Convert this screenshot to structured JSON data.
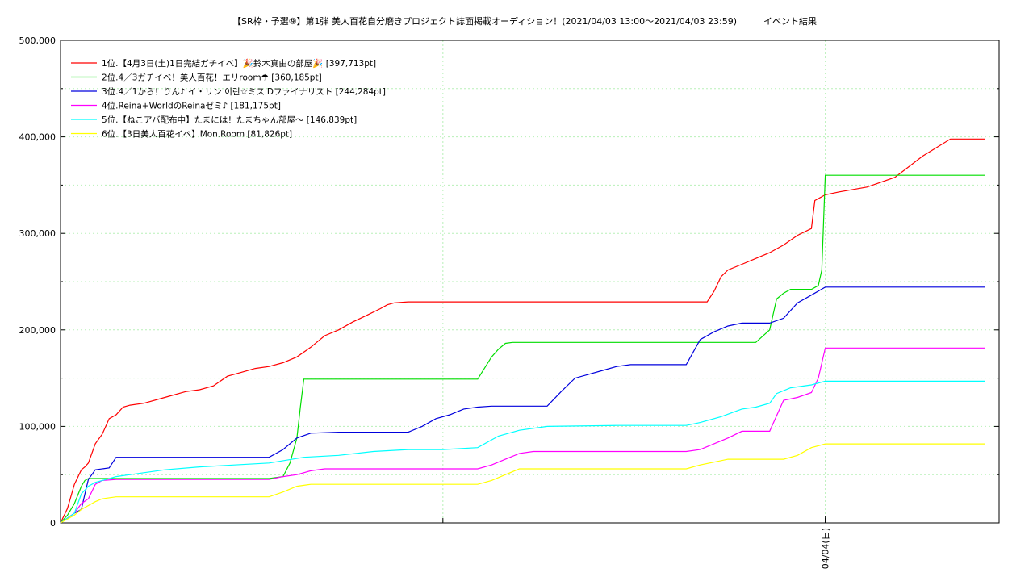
{
  "chart_data": {
    "type": "line",
    "title": "【SR枠・予選⑨】第1弾 美人百花自分磨きプロジェクト誌面掲載オーディション！(2021/04/03 13:00～2021/04/03 23:59)　　　イベント結果",
    "xlabel": "",
    "ylabel": "",
    "x_tick_labels": [
      "04/04(日)"
    ],
    "x_tick_values": [
      11.0
    ],
    "xlim": [
      0,
      13.5
    ],
    "ylim": [
      0,
      500000
    ],
    "y_ticks": [
      0,
      100000,
      200000,
      300000,
      400000,
      500000
    ],
    "y_tick_labels": [
      "0",
      "100,000",
      "200,000",
      "300,000",
      "400,000",
      "500,000"
    ],
    "grid": true,
    "legend_position": "top-left",
    "series": [
      {
        "name": "1位.【4月3日(土)1日完結ガチイベ】🎉鈴木真由の部屋🎉 [397,713pt]",
        "color": "#ff0000",
        "x": [
          0,
          0.1,
          0.2,
          0.3,
          0.35,
          0.4,
          0.5,
          0.6,
          0.7,
          0.8,
          0.9,
          1.0,
          1.2,
          1.5,
          1.8,
          2.0,
          2.2,
          2.4,
          2.6,
          2.8,
          3.0,
          3.2,
          3.4,
          3.6,
          3.7,
          3.8,
          4.0,
          4.2,
          4.4,
          4.6,
          4.7,
          4.8,
          5.0,
          5.3,
          5.6,
          6.0,
          7.0,
          8.0,
          9.0,
          9.3,
          9.4,
          9.5,
          9.6,
          9.8,
          10.0,
          10.2,
          10.4,
          10.6,
          10.8,
          10.85,
          10.9,
          11.0,
          11.2,
          11.6,
          12.0,
          12.4,
          12.8,
          13.3
        ],
        "values": [
          0,
          15000,
          40000,
          55000,
          58000,
          62000,
          82000,
          92000,
          108000,
          112000,
          120000,
          122000,
          124000,
          130000,
          136000,
          138000,
          142000,
          152000,
          156000,
          160000,
          162000,
          166000,
          172000,
          182000,
          188000,
          194000,
          200000,
          208000,
          215000,
          222000,
          226000,
          228000,
          229000,
          229000,
          229000,
          229000,
          229000,
          229000,
          229000,
          229000,
          240000,
          255000,
          262000,
          268000,
          274000,
          280000,
          288000,
          298000,
          305000,
          334000,
          336000,
          340000,
          343000,
          348000,
          358000,
          380000,
          397713,
          397713
        ]
      },
      {
        "name": "2位.4／3ガチイベ！美人百花！エリroom☂ [360,185pt]",
        "color": "#00dd00",
        "x": [
          0,
          0.1,
          0.2,
          0.3,
          0.35,
          0.4,
          0.5,
          1.0,
          2.0,
          3.0,
          3.2,
          3.3,
          3.4,
          3.45,
          3.5,
          4.0,
          5.0,
          6.0,
          6.2,
          6.3,
          6.4,
          6.5,
          7.0,
          8.0,
          9.0,
          10.0,
          10.2,
          10.3,
          10.4,
          10.5,
          10.6,
          10.8,
          10.9,
          10.95,
          11.0,
          13.3
        ],
        "values": [
          0,
          8000,
          20000,
          38000,
          44000,
          46000,
          46000,
          46000,
          46000,
          46000,
          48000,
          62000,
          88000,
          120000,
          149000,
          149000,
          149000,
          149000,
          172000,
          180000,
          186000,
          187000,
          187000,
          187000,
          187000,
          187000,
          200000,
          232000,
          238000,
          242000,
          242000,
          242000,
          246000,
          262000,
          360185,
          360185
        ]
      },
      {
        "name": "3位.4／1から！りん♪ イ・リン 이린☆ミスiDファイナリスト [244,284pt]",
        "color": "#0000dd",
        "x": [
          0,
          0.1,
          0.2,
          0.3,
          0.35,
          0.4,
          0.5,
          0.7,
          0.8,
          1.0,
          2.0,
          3.0,
          3.2,
          3.4,
          3.6,
          4.0,
          5.0,
          5.2,
          5.4,
          5.6,
          5.8,
          6.0,
          6.2,
          6.5,
          7.0,
          7.2,
          7.4,
          7.6,
          7.8,
          8.0,
          8.2,
          8.4,
          8.6,
          9.0,
          9.2,
          9.4,
          9.6,
          9.8,
          10.0,
          10.2,
          10.4,
          10.6,
          10.8,
          11.0,
          13.3
        ],
        "values": [
          0,
          5000,
          10000,
          14000,
          30000,
          45000,
          55000,
          57000,
          68000,
          68000,
          68000,
          68000,
          76000,
          88000,
          93000,
          94000,
          94000,
          100000,
          108000,
          112000,
          118000,
          120000,
          121000,
          121000,
          121000,
          136000,
          150000,
          154000,
          158000,
          162000,
          164000,
          164000,
          164000,
          164000,
          190000,
          198000,
          204000,
          207000,
          207000,
          207000,
          212000,
          228000,
          236000,
          244284,
          244284
        ]
      },
      {
        "name": "4位.Reina+WorldのReinaゼミ♪ [181,175pt]",
        "color": "#ff00ff",
        "x": [
          0,
          0.2,
          0.3,
          0.4,
          0.5,
          0.6,
          0.8,
          1.0,
          2.0,
          3.0,
          3.2,
          3.4,
          3.6,
          3.8,
          4.0,
          5.0,
          5.5,
          6.0,
          6.2,
          6.4,
          6.6,
          6.8,
          7.0,
          8.0,
          9.0,
          9.2,
          9.4,
          9.6,
          9.8,
          10.0,
          10.2,
          10.4,
          10.6,
          10.8,
          10.9,
          11.0,
          13.3
        ],
        "values": [
          0,
          10000,
          20000,
          25000,
          40000,
          44000,
          45000,
          45000,
          45000,
          45000,
          48000,
          50000,
          54000,
          56000,
          56000,
          56000,
          56000,
          56000,
          60000,
          66000,
          72000,
          74000,
          74000,
          74000,
          74000,
          76000,
          82000,
          88000,
          95000,
          95000,
          95000,
          127000,
          130000,
          135000,
          150000,
          181175,
          181175
        ]
      },
      {
        "name": "5位.【ねこアバ配布中】たまには！たまちゃん部屋〜 [146,839pt]",
        "color": "#00ffff",
        "x": [
          0,
          0.2,
          0.3,
          0.4,
          0.5,
          0.6,
          0.8,
          1.0,
          1.5,
          2.0,
          2.5,
          3.0,
          3.5,
          4.0,
          4.5,
          5.0,
          5.5,
          6.0,
          6.3,
          6.6,
          7.0,
          8.0,
          9.0,
          9.2,
          9.5,
          9.8,
          10.0,
          10.2,
          10.3,
          10.5,
          10.8,
          11.0,
          13.3
        ],
        "values": [
          0,
          10000,
          30000,
          38000,
          42000,
          44000,
          48000,
          50000,
          55000,
          58000,
          60000,
          62000,
          68000,
          70000,
          74000,
          76000,
          76000,
          78000,
          90000,
          96000,
          100000,
          101000,
          101000,
          104000,
          110000,
          118000,
          120000,
          124000,
          134000,
          140000,
          143000,
          146839,
          146839
        ]
      },
      {
        "name": "6位.【3日美人百花イベ】Mon.Room [81,826pt]",
        "color": "#ffff00",
        "x": [
          0,
          0.2,
          0.3,
          0.4,
          0.5,
          0.6,
          0.8,
          1.0,
          2.0,
          3.0,
          3.2,
          3.4,
          3.6,
          4.0,
          5.0,
          6.0,
          6.2,
          6.4,
          6.6,
          7.0,
          8.0,
          9.0,
          9.2,
          9.4,
          9.6,
          9.8,
          10.0,
          10.2,
          10.4,
          10.6,
          10.8,
          11.0,
          13.3
        ],
        "values": [
          0,
          8000,
          14000,
          18000,
          22000,
          25000,
          27000,
          27000,
          27000,
          27000,
          32000,
          38000,
          40000,
          40000,
          40000,
          40000,
          44000,
          50000,
          56000,
          56000,
          56000,
          56000,
          60000,
          63000,
          66000,
          66000,
          66000,
          66000,
          66000,
          70000,
          78000,
          81826,
          81826
        ]
      }
    ]
  }
}
